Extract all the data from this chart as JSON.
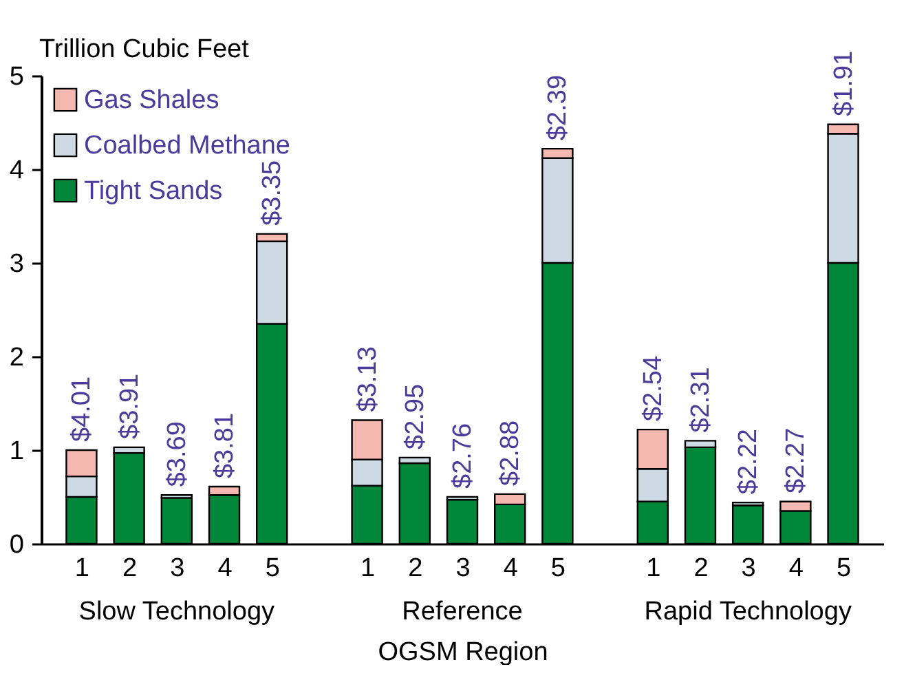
{
  "chart_data": {
    "type": "bar",
    "stacked": true,
    "ylabel": "Trillion Cubic Feet",
    "xlabel": "OGSM Region",
    "categories": [
      "1",
      "2",
      "3",
      "4",
      "5",
      "1",
      "2",
      "3",
      "4",
      "5",
      "1",
      "2",
      "3",
      "4",
      "5"
    ],
    "ylim": [
      0,
      5
    ],
    "yticks": [
      0,
      1,
      2,
      3,
      4,
      5
    ],
    "legend": "top left",
    "series": [
      {
        "name": "Tight Sands",
        "color": "#00873a",
        "values": [
          0.5,
          0.97,
          0.49,
          0.52,
          2.35,
          0.62,
          0.86,
          0.47,
          0.42,
          3.0,
          0.45,
          1.03,
          0.41,
          0.35,
          3.0
        ]
      },
      {
        "name": "Coalbed Methane",
        "color": "#cdd9e3",
        "values": [
          0.22,
          0.06,
          0.03,
          null,
          0.88,
          0.28,
          0.06,
          0.03,
          null,
          1.12,
          0.35,
          0.07,
          0.03,
          null,
          1.38
        ]
      },
      {
        "name": "Gas Shales",
        "color": "#f4b8b0",
        "values": [
          0.28,
          null,
          null,
          0.09,
          0.08,
          0.42,
          null,
          null,
          0.11,
          0.1,
          0.42,
          null,
          null,
          0.1,
          0.1
        ]
      }
    ],
    "annotations": [
      "$4.01",
      "$3.91",
      "$3.69",
      "$3.81",
      "$3.35",
      "$3.13",
      "$2.95",
      "$2.76",
      "$2.88",
      "$2.39",
      "$2.54",
      "$2.31",
      "$2.22",
      "$2.27",
      "$1.91",
      "Slow Technology",
      "Reference",
      "Rapid Technology"
    ]
  }
}
